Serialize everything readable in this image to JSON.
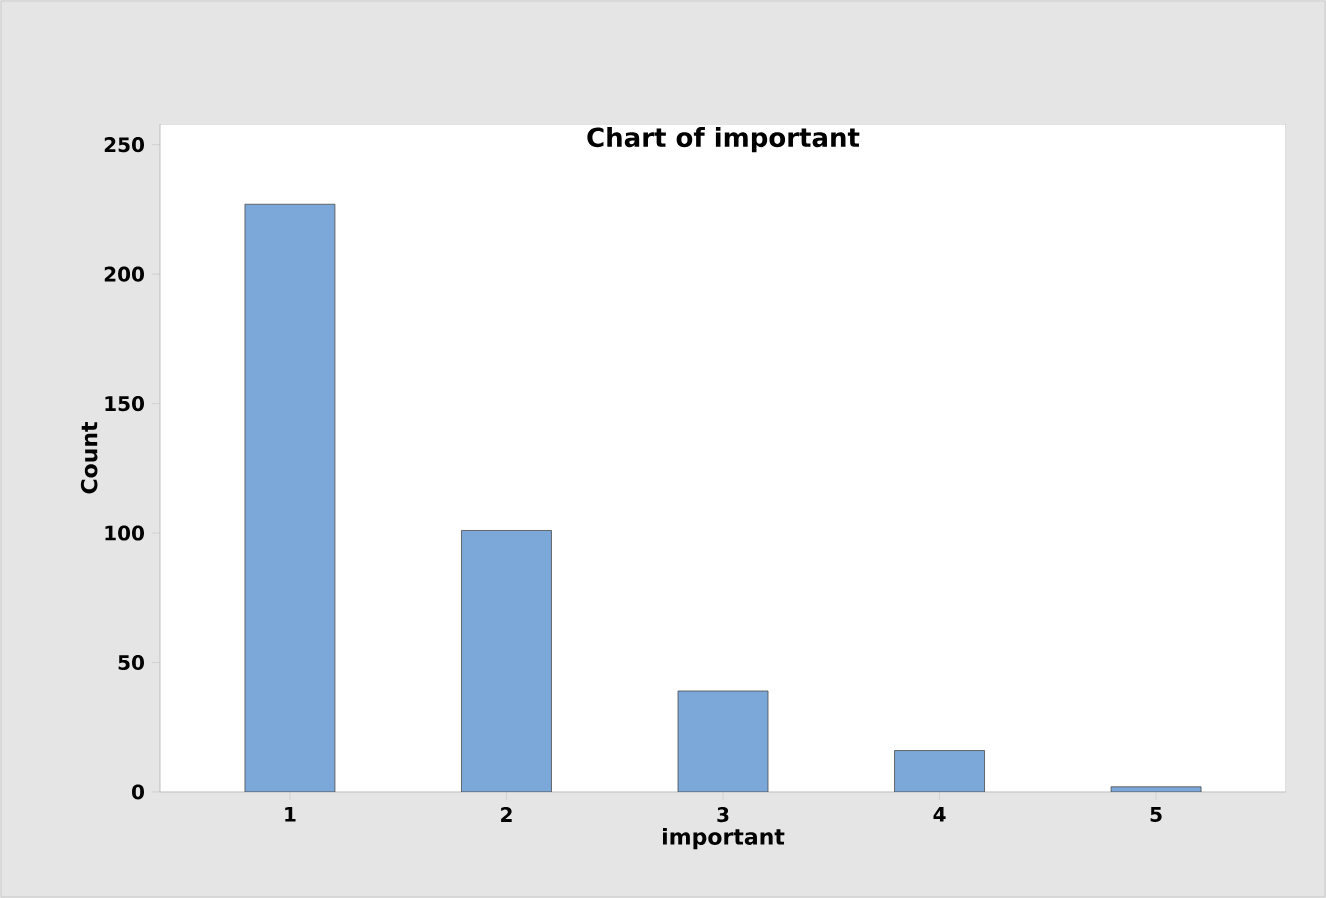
{
  "chart_data": {
    "type": "bar",
    "title": "Chart of important",
    "xlabel": "important",
    "ylabel": "Count",
    "categories": [
      "1",
      "2",
      "3",
      "4",
      "5"
    ],
    "values": [
      227,
      101,
      39,
      16,
      2
    ],
    "color": "#7ba7d9",
    "ylim": [
      0,
      258
    ],
    "yticks": [
      0,
      50,
      100,
      150,
      200,
      250
    ]
  }
}
